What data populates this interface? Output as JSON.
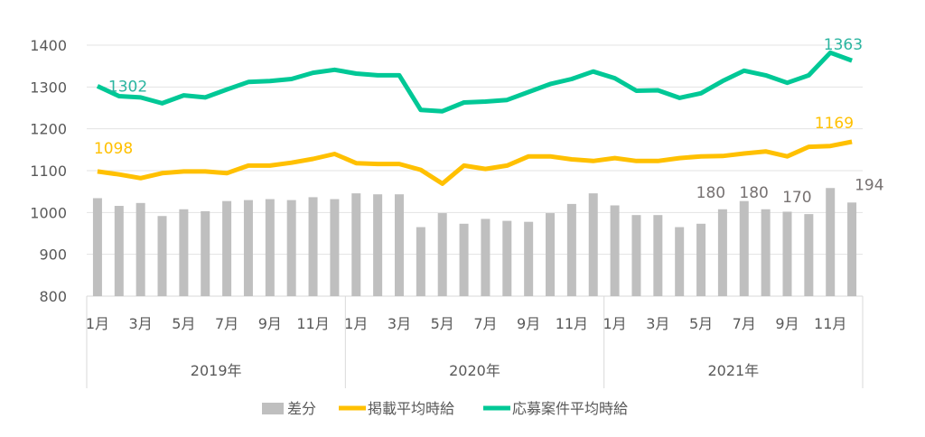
{
  "chart_data": {
    "type": "bar+line",
    "title": "",
    "ylim": [
      800,
      1400
    ],
    "yticks": [
      800,
      900,
      1000,
      1100,
      1200,
      1300,
      1400
    ],
    "y2lim": [
      0,
      520
    ],
    "y2_visible": false,
    "grid": true,
    "legend_position": "bottom",
    "months": [
      "1月",
      "2月",
      "3月",
      "4月",
      "5月",
      "6月",
      "7月",
      "8月",
      "9月",
      "10月",
      "11月",
      "12月"
    ],
    "month_tick_labels": [
      "1月",
      "",
      "3月",
      "",
      "5月",
      "",
      "7月",
      "",
      "9月",
      "",
      "11月",
      ""
    ],
    "years": [
      "2019年",
      "2020年",
      "2021年"
    ],
    "series": [
      {
        "name": "差分",
        "kind": "bar",
        "axis": "secondary",
        "color": "#bfbfbf",
        "values": [
          203,
          187,
          193,
          166,
          180,
          176,
          197,
          199,
          201,
          199,
          205,
          201,
          213,
          211,
          211,
          143,
          172,
          150,
          160,
          156,
          154,
          172,
          191,
          213,
          188,
          168,
          168,
          143,
          150,
          180,
          197,
          180,
          175,
          170,
          224,
          194
        ],
        "labels": {
          "29": "180",
          "31": "180",
          "33": "170",
          "35": "194"
        }
      },
      {
        "name": "掲載平均時給",
        "kind": "line",
        "axis": "primary",
        "color": "#ffc000",
        "values": [
          1098,
          1091,
          1082,
          1094,
          1098,
          1098,
          1094,
          1112,
          1112,
          1119,
          1128,
          1140,
          1118,
          1116,
          1116,
          1102,
          1069,
          1112,
          1104,
          1112,
          1134,
          1134,
          1127,
          1123,
          1130,
          1123,
          1123,
          1130,
          1134,
          1135,
          1141,
          1146,
          1134,
          1157,
          1159,
          1169
        ],
        "labels": {
          "0": "1098",
          "35": "1169"
        }
      },
      {
        "name": "応募案件平均時給",
        "kind": "line",
        "axis": "primary",
        "color": "#00c896",
        "values": [
          1302,
          1278,
          1275,
          1261,
          1280,
          1275,
          1294,
          1312,
          1314,
          1319,
          1334,
          1341,
          1332,
          1328,
          1328,
          1245,
          1242,
          1263,
          1265,
          1269,
          1288,
          1307,
          1319,
          1337,
          1321,
          1291,
          1292,
          1274,
          1285,
          1314,
          1339,
          1328,
          1310,
          1328,
          1382,
          1363
        ],
        "labels": {
          "0": "1302",
          "35": "1363"
        }
      }
    ],
    "label_colors": {
      "bar": "#767171",
      "orange": "#ffc000",
      "green": "#2bb5a0"
    },
    "axis_text_color": "#595959",
    "grid_color": "#e3e3e3"
  }
}
